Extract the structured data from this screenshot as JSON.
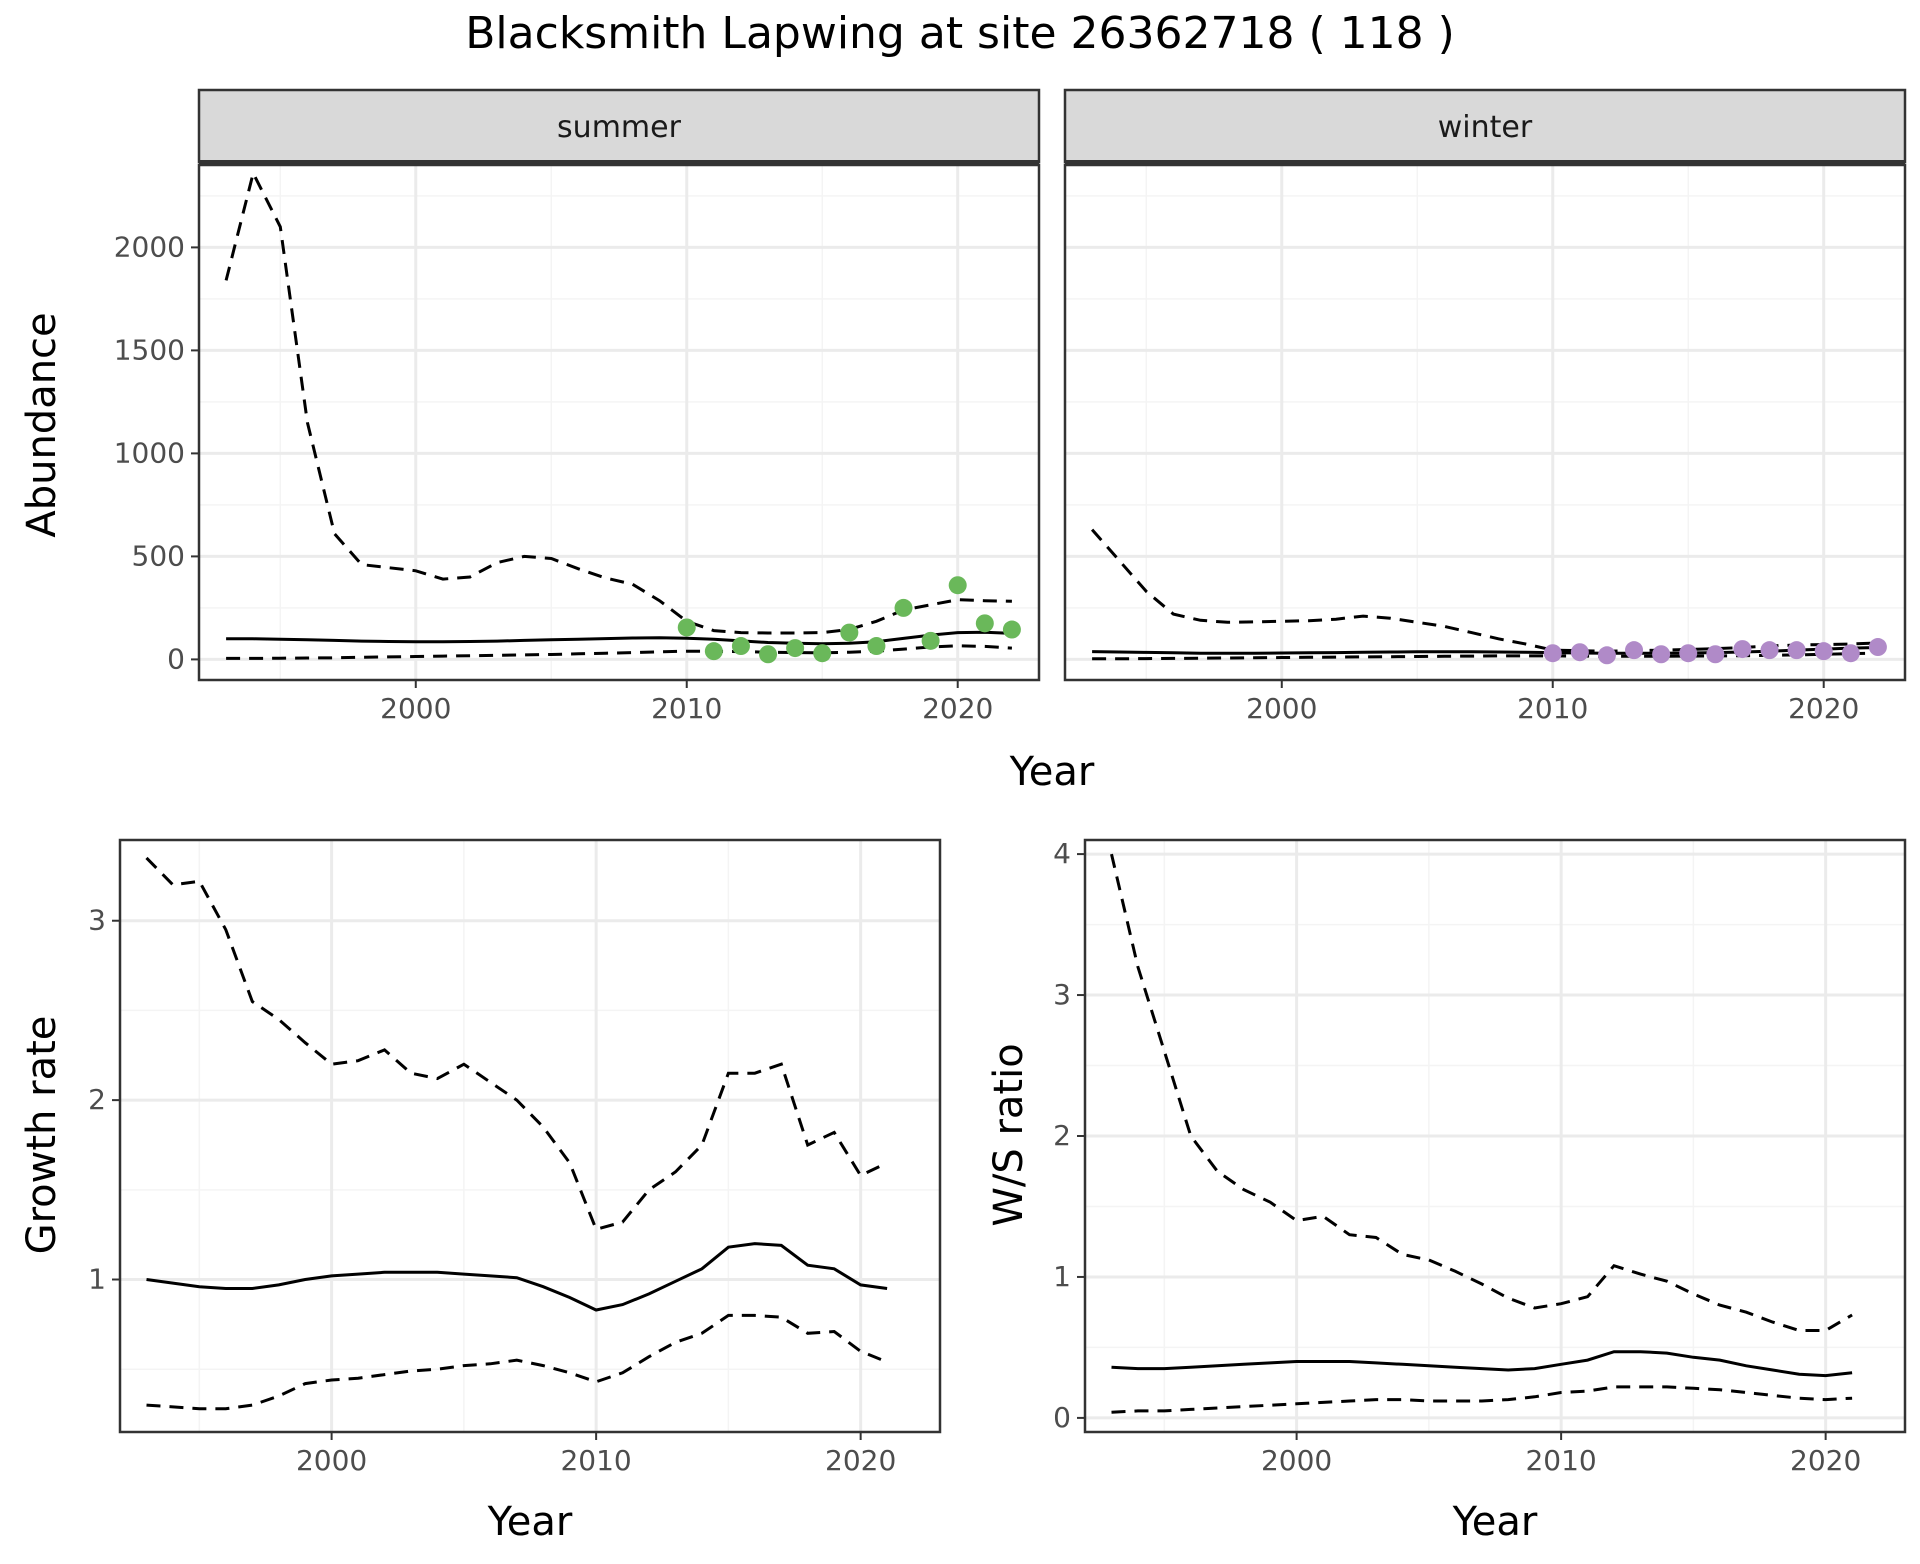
{
  "figure": {
    "title": "Blacksmith Lapwing at site 26362718 ( 118 )"
  },
  "colors": {
    "summer_points": "#6ab85a",
    "winter_points": "#b08ac8",
    "line": "#000000",
    "grid_major": "#ebebeb",
    "strip_fill": "#d9d9d9"
  },
  "chart_data": [
    {
      "type": "line",
      "title": "",
      "xlabel": "Year",
      "ylabel": "Abundance",
      "xlim": [
        1992,
        2023
      ],
      "ylim": [
        -100,
        2400
      ],
      "xticks": [
        2000,
        2010,
        2020
      ],
      "yticks": [
        0,
        500,
        1000,
        1500,
        2000
      ],
      "grid": true,
      "panels": [
        {
          "strip": "summer",
          "x": [
            1993,
            1994,
            1995,
            1996,
            1997,
            1998,
            1999,
            2000,
            2001,
            2002,
            2003,
            2004,
            2005,
            2006,
            2007,
            2008,
            2009,
            2010,
            2011,
            2012,
            2013,
            2014,
            2015,
            2016,
            2017,
            2018,
            2019,
            2020,
            2021,
            2022
          ],
          "series": [
            {
              "style": "solid",
              "values": [
                100,
                100,
                98,
                95,
                92,
                89,
                87,
                86,
                86,
                87,
                89,
                92,
                95,
                98,
                101,
                104,
                105,
                103,
                98,
                90,
                82,
                78,
                76,
                78,
                86,
                102,
                118,
                130,
                132,
                126
              ]
            },
            {
              "style": "dashed",
              "values": [
                1840,
                2360,
                2100,
                1150,
                610,
                460,
                445,
                430,
                390,
                400,
                470,
                500,
                490,
                440,
                395,
                365,
                285,
                185,
                140,
                130,
                128,
                128,
                130,
                145,
                185,
                240,
                265,
                290,
                285,
                282
              ]
            },
            {
              "style": "dashed",
              "values": [
                5,
                5,
                6,
                7,
                8,
                10,
                12,
                14,
                16,
                18,
                20,
                22,
                24,
                27,
                30,
                33,
                37,
                40,
                40,
                38,
                35,
                33,
                32,
                35,
                40,
                50,
                60,
                66,
                63,
                55
              ]
            }
          ],
          "points": {
            "x": [
              2010,
              2011,
              2012,
              2013,
              2014,
              2015,
              2016,
              2017,
              2018,
              2019,
              2020,
              2021,
              2022
            ],
            "y": [
              155,
              40,
              65,
              25,
              55,
              30,
              130,
              65,
              250,
              90,
              360,
              175,
              145
            ]
          }
        },
        {
          "strip": "winter",
          "x": [
            1993,
            1994,
            1995,
            1996,
            1997,
            1998,
            1999,
            2000,
            2001,
            2002,
            2003,
            2004,
            2005,
            2006,
            2007,
            2008,
            2009,
            2010,
            2011,
            2012,
            2013,
            2014,
            2015,
            2016,
            2017,
            2018,
            2019,
            2020,
            2021,
            2022
          ],
          "series": [
            {
              "style": "solid",
              "values": [
                38,
                36,
                34,
                32,
                30,
                30,
                30,
                31,
                32,
                33,
                35,
                36,
                37,
                37,
                37,
                36,
                35,
                33,
                31,
                30,
                30,
                30,
                31,
                33,
                36,
                40,
                45,
                50,
                55,
                58
              ]
            },
            {
              "style": "dashed",
              "values": [
                630,
                480,
                330,
                220,
                190,
                180,
                182,
                185,
                188,
                195,
                210,
                200,
                180,
                160,
                130,
                100,
                75,
                45,
                42,
                40,
                42,
                45,
                48,
                52,
                58,
                65,
                70,
                72,
                75,
                80
              ]
            },
            {
              "style": "dashed",
              "values": [
                3,
                3,
                4,
                5,
                6,
                7,
                8,
                9,
                10,
                11,
                12,
                13,
                14,
                15,
                16,
                17,
                17,
                17,
                16,
                15,
                15,
                15,
                16,
                17,
                18,
                20,
                22,
                25,
                28,
                30
              ]
            }
          ],
          "points": {
            "x": [
              2010,
              2011,
              2012,
              2013,
              2014,
              2015,
              2016,
              2017,
              2018,
              2019,
              2020,
              2021,
              2022
            ],
            "y": [
              30,
              35,
              20,
              45,
              25,
              30,
              25,
              50,
              45,
              45,
              40,
              30,
              60
            ]
          }
        }
      ]
    },
    {
      "type": "line",
      "title": "",
      "xlabel": "Year",
      "ylabel": "Growth rate",
      "xlim": [
        1992,
        2023
      ],
      "ylim": [
        0.15,
        3.45
      ],
      "xticks": [
        2000,
        2010,
        2020
      ],
      "yticks": [
        1,
        2,
        3
      ],
      "grid": true,
      "x": [
        1993,
        1994,
        1995,
        1996,
        1997,
        1998,
        1999,
        2000,
        2001,
        2002,
        2003,
        2004,
        2005,
        2006,
        2007,
        2008,
        2009,
        2010,
        2011,
        2012,
        2013,
        2014,
        2015,
        2016,
        2017,
        2018,
        2019,
        2020,
        2021
      ],
      "series": [
        {
          "style": "solid",
          "values": [
            1.0,
            0.98,
            0.96,
            0.95,
            0.95,
            0.97,
            1.0,
            1.02,
            1.03,
            1.04,
            1.04,
            1.04,
            1.03,
            1.02,
            1.01,
            0.96,
            0.9,
            0.83,
            0.86,
            0.92,
            0.99,
            1.06,
            1.18,
            1.2,
            1.19,
            1.08,
            1.06,
            0.97,
            0.95
          ]
        },
        {
          "style": "dashed",
          "values": [
            3.35,
            3.2,
            3.22,
            2.95,
            2.55,
            2.45,
            2.32,
            2.2,
            2.22,
            2.28,
            2.15,
            2.12,
            2.2,
            2.1,
            2.0,
            1.85,
            1.65,
            1.28,
            1.32,
            1.5,
            1.6,
            1.75,
            2.15,
            2.15,
            2.2,
            1.75,
            1.82,
            1.58,
            1.65
          ]
        },
        {
          "style": "dashed",
          "values": [
            0.3,
            0.29,
            0.28,
            0.28,
            0.3,
            0.35,
            0.42,
            0.44,
            0.45,
            0.47,
            0.49,
            0.5,
            0.52,
            0.53,
            0.55,
            0.52,
            0.48,
            0.43,
            0.48,
            0.57,
            0.65,
            0.7,
            0.8,
            0.8,
            0.79,
            0.7,
            0.71,
            0.6,
            0.54
          ]
        }
      ]
    },
    {
      "type": "line",
      "title": "",
      "xlabel": "Year",
      "ylabel": "W/S ratio",
      "xlim": [
        1992,
        2023
      ],
      "ylim": [
        -0.1,
        4.1
      ],
      "xticks": [
        2000,
        2010,
        2020
      ],
      "yticks": [
        0,
        1,
        2,
        3,
        4
      ],
      "grid": true,
      "x": [
        1993,
        1994,
        1995,
        1996,
        1997,
        1998,
        1999,
        2000,
        2001,
        2002,
        2003,
        2004,
        2005,
        2006,
        2007,
        2008,
        2009,
        2010,
        2011,
        2012,
        2013,
        2014,
        2015,
        2016,
        2017,
        2018,
        2019,
        2020,
        2021
      ],
      "series": [
        {
          "style": "solid",
          "values": [
            0.36,
            0.35,
            0.35,
            0.36,
            0.37,
            0.38,
            0.39,
            0.4,
            0.4,
            0.4,
            0.39,
            0.38,
            0.37,
            0.36,
            0.35,
            0.34,
            0.35,
            0.38,
            0.41,
            0.47,
            0.47,
            0.46,
            0.43,
            0.41,
            0.37,
            0.34,
            0.31,
            0.3,
            0.32
          ]
        },
        {
          "style": "dashed",
          "values": [
            4.0,
            3.2,
            2.6,
            2.0,
            1.75,
            1.62,
            1.53,
            1.4,
            1.43,
            1.3,
            1.28,
            1.16,
            1.12,
            1.04,
            0.95,
            0.85,
            0.78,
            0.81,
            0.86,
            1.08,
            1.02,
            0.97,
            0.88,
            0.8,
            0.75,
            0.68,
            0.62,
            0.62,
            0.73
          ]
        },
        {
          "style": "dashed",
          "values": [
            0.04,
            0.05,
            0.05,
            0.06,
            0.07,
            0.08,
            0.09,
            0.1,
            0.11,
            0.12,
            0.13,
            0.13,
            0.12,
            0.12,
            0.12,
            0.13,
            0.15,
            0.18,
            0.19,
            0.22,
            0.22,
            0.22,
            0.21,
            0.2,
            0.18,
            0.16,
            0.14,
            0.13,
            0.14
          ]
        }
      ]
    }
  ]
}
